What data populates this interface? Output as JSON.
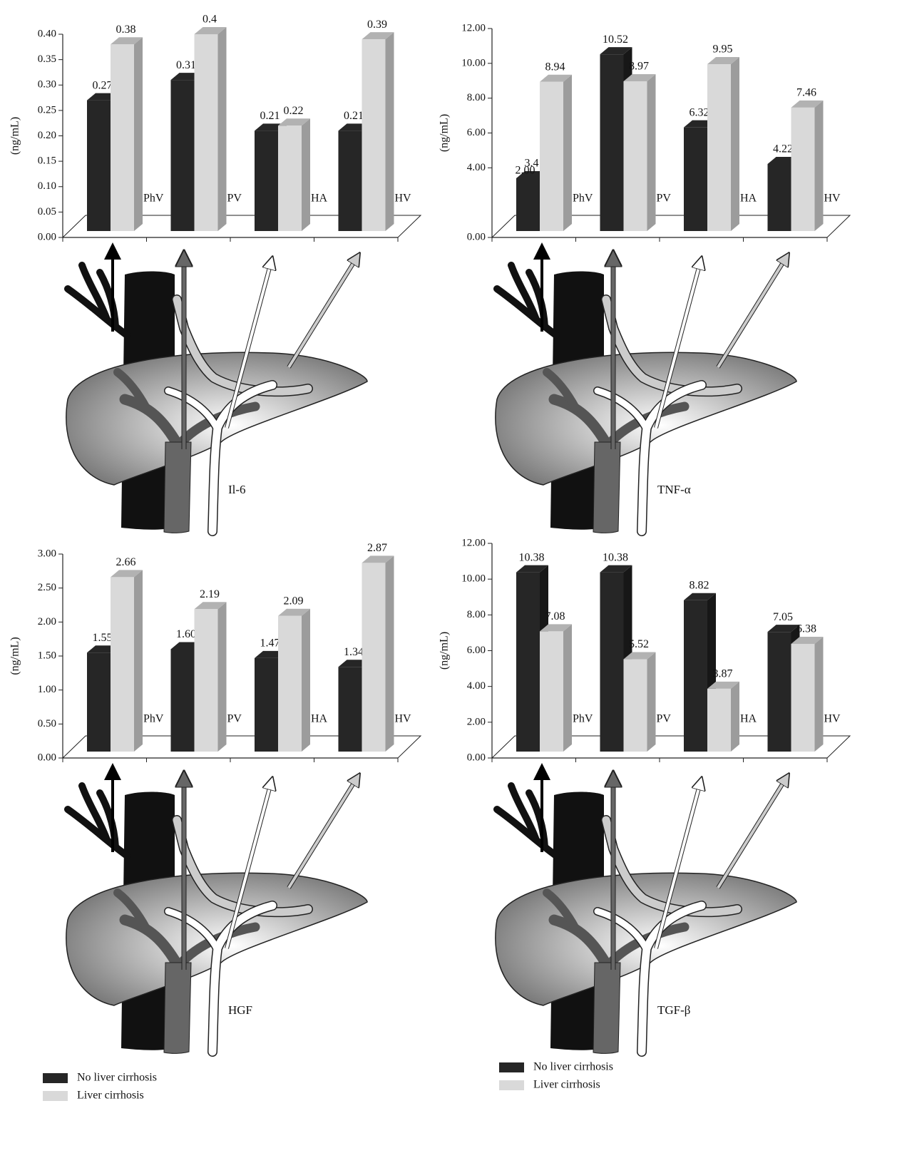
{
  "chart_data": [
    {
      "type": "bar",
      "label": "Il-6",
      "ylabel": "(ng/mL)",
      "legend": false,
      "categories": [
        "PhV",
        "PV",
        "HA",
        "HV"
      ],
      "series": [
        {
          "name": "No liver cirrhosis",
          "color": "#262626",
          "values": [
            0.27,
            0.31,
            0.21,
            0.21
          ]
        },
        {
          "name": "Liver cirrhosis",
          "color": "#d9d9d9",
          "values": [
            0.38,
            0.4,
            0.22,
            0.39
          ]
        }
      ],
      "ylim": [
        0,
        0.4
      ],
      "yticks": [
        {
          "value": 0,
          "label": "0.00"
        },
        {
          "value": 0.05,
          "label": "0.05"
        },
        {
          "value": 0.1,
          "label": "0.10"
        },
        {
          "value": 0.15,
          "label": "0.15"
        },
        {
          "value": 0.2,
          "label": "0.20"
        },
        {
          "value": 0.25,
          "label": "0.25"
        },
        {
          "value": 0.3,
          "label": "0.30"
        },
        {
          "value": 0.35,
          "label": "0.35"
        },
        {
          "value": 0.4,
          "label": "0.40"
        }
      ]
    },
    {
      "type": "bar",
      "label": "TNF-α",
      "ylabel": "(ng/mL)",
      "legend": false,
      "annotation": "2.00",
      "categories": [
        "PhV",
        "PV",
        "HA",
        "HV"
      ],
      "series": [
        {
          "name": "No liver cirrhosis",
          "color": "#262626",
          "values": [
            3.4,
            10.52,
            6.32,
            4.22
          ]
        },
        {
          "name": "Liver cirrhosis",
          "color": "#d9d9d9",
          "values": [
            8.94,
            8.97,
            9.95,
            7.46
          ]
        }
      ],
      "ylim": [
        0,
        12
      ],
      "yticks": [
        {
          "value": 0,
          "label": "0.00"
        },
        {
          "value": 4,
          "label": "4.00"
        },
        {
          "value": 6,
          "label": "6.00"
        },
        {
          "value": 8,
          "label": "8.00"
        },
        {
          "value": 10,
          "label": "10.00"
        },
        {
          "value": 12,
          "label": "12.00"
        }
      ]
    },
    {
      "type": "bar",
      "label": "HGF",
      "ylabel": "(ng/mL)",
      "legend": true,
      "categories": [
        "PhV",
        "PV",
        "HA",
        "HV"
      ],
      "series": [
        {
          "name": "No liver cirrhosis",
          "color": "#262626",
          "values": [
            1.55,
            1.6,
            1.47,
            1.34
          ],
          "value_labels": [
            "1.55",
            "1.60",
            "1.47",
            "1.34"
          ]
        },
        {
          "name": "Liver cirrhosis",
          "color": "#d9d9d9",
          "values": [
            2.66,
            2.19,
            2.09,
            2.87
          ]
        }
      ],
      "ylim": [
        0,
        3
      ],
      "yticks": [
        {
          "value": 0,
          "label": "0.00"
        },
        {
          "value": 0.5,
          "label": "0.50"
        },
        {
          "value": 1,
          "label": "1.00"
        },
        {
          "value": 1.5,
          "label": "1.50"
        },
        {
          "value": 2,
          "label": "2.00"
        },
        {
          "value": 2.5,
          "label": "2.50"
        },
        {
          "value": 3,
          "label": "3.00"
        }
      ]
    },
    {
      "type": "bar",
      "label": "TGF-β",
      "ylabel": "(ng/mL)",
      "legend": true,
      "categories": [
        "PhV",
        "PV",
        "HA",
        "HV"
      ],
      "series": [
        {
          "name": "No liver cirrhosis",
          "color": "#262626",
          "values": [
            10.38,
            10.38,
            8.82,
            7.05
          ]
        },
        {
          "name": "Liver cirrhosis",
          "color": "#d9d9d9",
          "values": [
            7.08,
            5.52,
            3.87,
            6.38
          ]
        }
      ],
      "ylim": [
        0,
        12
      ],
      "yticks": [
        {
          "value": 0,
          "label": "0.00"
        },
        {
          "value": 2,
          "label": "2.00"
        },
        {
          "value": 4,
          "label": "4.00"
        },
        {
          "value": 6,
          "label": "6.00"
        },
        {
          "value": 8,
          "label": "8.00"
        },
        {
          "value": 10,
          "label": "10.00"
        },
        {
          "value": 12,
          "label": "12.00"
        }
      ]
    }
  ]
}
